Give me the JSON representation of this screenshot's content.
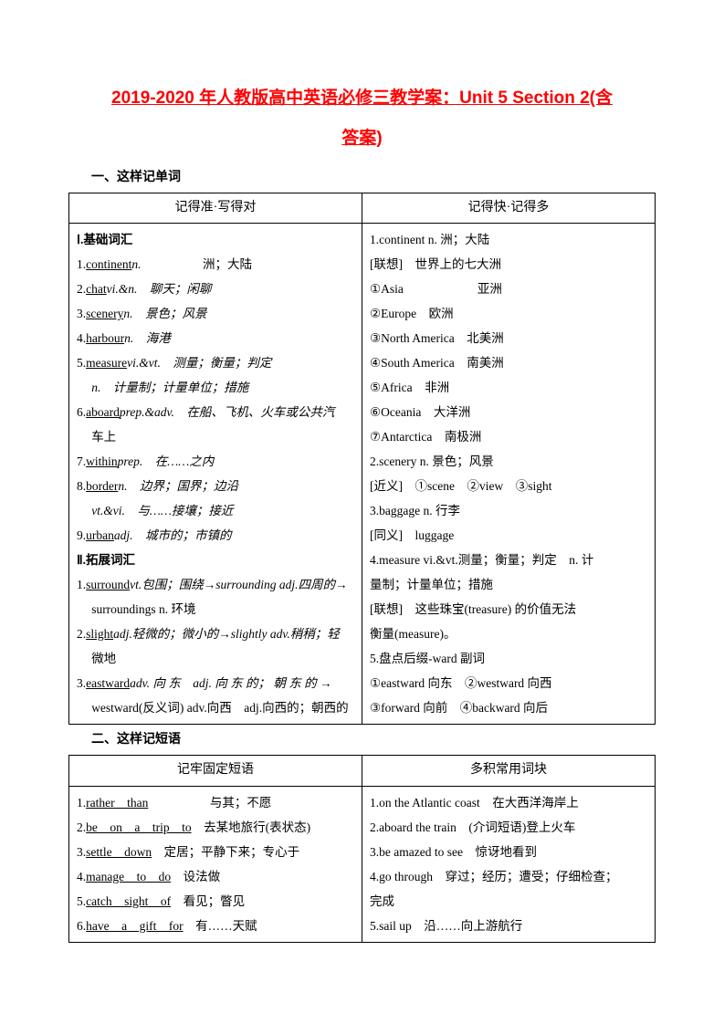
{
  "title_line1": "2019-2020 年人教版高中英语必修三教学案：Unit 5 Section 2(含",
  "title_line2": "答案)",
  "section1_heading": "一、这样记单词",
  "table1": {
    "header_left": "记得准·写得对",
    "header_right": "记得快·记得多",
    "left": {
      "h1": "Ⅰ.基础词汇",
      "i1a": "continent",
      "i1b": "n.",
      "i1c": "洲；大陆",
      "i2a": "chat",
      "i2b": "vi.&n.　聊天；闲聊",
      "i3a": "scenery",
      "i3b": "n.　景色；风景",
      "i4a": "harbour",
      "i4b": "n.　海港",
      "i5a": "measure",
      "i5b": "vi.&vt.　测量；衡量；判定",
      "i5c": "n.　计量制；计量单位；措施",
      "i6a": "aboard",
      "i6b": "prep.&adv.　在船、飞机、火车或公共汽",
      "i6c": "车上",
      "i7a": "within",
      "i7b": "prep.　在……之内",
      "i8a": "border",
      "i8b": "n.　边界；国界；边沿",
      "i8c": "vt.&vi.　与……接壤；接近",
      "i9a": "urban",
      "i9b": "adj.　城市的；市镇的",
      "h2": "Ⅱ.拓展词汇",
      "e1a": "surround",
      "e1b": "vt.包围；围绕→surrounding adj.四周的→",
      "e1c": "surroundings n. 环境",
      "e2a": "slight",
      "e2b": "adj.轻微的；微小的→slightly adv.稍稍；轻",
      "e2c": "微地",
      "e3a": "eastward",
      "e3b": "adv. 向 东　adj. 向 东 的； 朝 东 的 →",
      "e3c": "westward(反义词) adv.向西　adj.向西的；朝西的"
    },
    "right": {
      "r1": "1.continent n. 洲；大陆",
      "r2": "[联想]　世界上的七大洲",
      "r3a": "①Asia",
      "r3b": "亚洲",
      "r4": "②Europe　欧洲",
      "r5": "③North America　北美洲",
      "r6": "④South America　南美洲",
      "r7": "⑤Africa　非洲",
      "r8": "⑥Oceania　大洋洲",
      "r9": "⑦Antarctica　南极洲",
      "r10": "2.scenery n. 景色；风景",
      "r11": "[近义]　①scene　②view　③sight",
      "r12": "3.baggage n. 行李",
      "r13": "[同义]　luggage",
      "r14": "4.measure vi.&vt.测量；衡量；判定　n. 计",
      "r14b": "量制；计量单位；措施",
      "r15": "[联想]　这些珠宝(treasure) 的价值无法",
      "r15b": "衡量(measure)。",
      "r16": "5.盘点后缀-ward 副词",
      "r17": "①eastward 向东　②westward 向西",
      "r18": "③forward 向前　④backward 向后"
    }
  },
  "section2_heading": "二、这样记短语",
  "table2": {
    "header_left": "记牢固定短语",
    "header_right": "多积常用词块",
    "left": {
      "p1a": "rather　than",
      "p1b": "与其；不愿",
      "p2a": "be　on　a　trip　to",
      "p2b": "　去某地旅行(表状态)",
      "p3a": "settle　down",
      "p3b": "　定居；平静下来；专心于",
      "p4a": "manage　to　do",
      "p4b": "　设法做",
      "p5a": "catch　sight　of",
      "p5b": "　看见；瞥见",
      "p6a": "have　a　gift　for",
      "p6b": "　有……天赋"
    },
    "right": {
      "q1": "1.on the Atlantic coast　在大西洋海岸上",
      "q2": "2.aboard the train　(介词短语)登上火车",
      "q3": "3.be amazed to see　惊讶地看到",
      "q4": "4.go through　穿过；经历；遭受；仔细检查；",
      "q4b": "完成",
      "q5": "5.sail up　沿……向上游航行"
    }
  }
}
